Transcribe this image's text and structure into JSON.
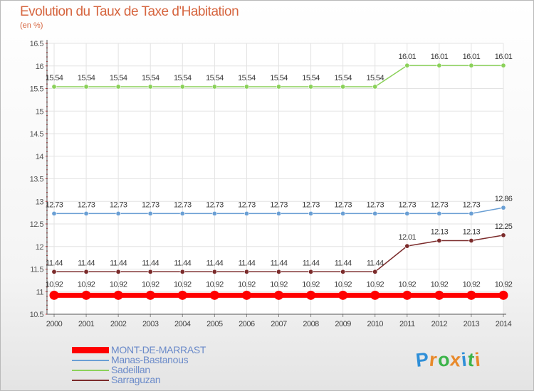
{
  "chart_data": {
    "type": "line",
    "title": "Evolution du Taux de Taxe d'Habitation",
    "subtitle": "(en %)",
    "xlabel": "",
    "ylabel": "(en %)",
    "ylim": [
      10.5,
      16.5
    ],
    "yticks": [
      "10.5",
      "11",
      "11.5",
      "12",
      "12.5",
      "13",
      "13.5",
      "14",
      "14.5",
      "15",
      "15.5",
      "16",
      "16.5"
    ],
    "categories": [
      "2000",
      "2001",
      "2002",
      "2003",
      "2004",
      "2005",
      "2006",
      "2007",
      "2008",
      "2009",
      "2010",
      "2011",
      "2012",
      "2013",
      "2014"
    ],
    "series": [
      {
        "name": "MONT-DE-MARRAST",
        "color": "#ff0000",
        "values": [
          10.92,
          10.92,
          10.92,
          10.92,
          10.92,
          10.92,
          10.92,
          10.92,
          10.92,
          10.92,
          10.92,
          10.92,
          10.92,
          10.92,
          10.92
        ],
        "labels": [
          "10.92",
          "10.92",
          "10.92",
          "10.92",
          "10.92",
          "10.92",
          "10.92",
          "10.92",
          "10.92",
          "10.92",
          "10.92",
          "10.92",
          "10.92",
          "10.92",
          "10.92"
        ]
      },
      {
        "name": "Manas-Bastanous",
        "color": "#6a9fd4",
        "values": [
          12.73,
          12.73,
          12.73,
          12.73,
          12.73,
          12.73,
          12.73,
          12.73,
          12.73,
          12.73,
          12.73,
          12.73,
          12.73,
          12.73,
          12.86
        ],
        "labels": [
          "12.73",
          "12.73",
          "12.73",
          "12.73",
          "12.73",
          "12.73",
          "12.73",
          "12.73",
          "12.73",
          "12.73",
          "12.73",
          "12.73",
          "12.73",
          "12.73",
          "12.86"
        ]
      },
      {
        "name": "Sadeillan",
        "color": "#8bd15a",
        "values": [
          15.54,
          15.54,
          15.54,
          15.54,
          15.54,
          15.54,
          15.54,
          15.54,
          15.54,
          15.54,
          15.54,
          16.01,
          16.01,
          16.01,
          16.01
        ],
        "labels": [
          "15.54",
          "15.54",
          "15.54",
          "15.54",
          "15.54",
          "15.54",
          "15.54",
          "15.54",
          "15.54",
          "15.54",
          "15.54",
          "16.01",
          "16.01",
          "16.01",
          "16.01"
        ]
      },
      {
        "name": "Sarraguzan",
        "color": "#7b2b2b",
        "values": [
          11.44,
          11.44,
          11.44,
          11.44,
          11.44,
          11.44,
          11.44,
          11.44,
          11.44,
          11.44,
          11.44,
          12.01,
          12.13,
          12.13,
          12.25
        ],
        "labels": [
          "11.44",
          "11.44",
          "11.44",
          "11.44",
          "11.44",
          "11.44",
          "11.44",
          "11.44",
          "11.44",
          "11.44",
          "11.44",
          "12.01",
          "12.13",
          "12.13",
          "12.25"
        ]
      }
    ],
    "legend_position": "bottom-left"
  },
  "brand": {
    "text": "Proxiti",
    "letters": [
      "P",
      "r",
      "o",
      "x",
      "i",
      "t",
      "i"
    ],
    "colors": [
      "#2f8fd8",
      "#e8892a",
      "#3cb44a",
      "#e8892a",
      "#2f8fd8",
      "#3cb44a",
      "#e8892a"
    ]
  }
}
